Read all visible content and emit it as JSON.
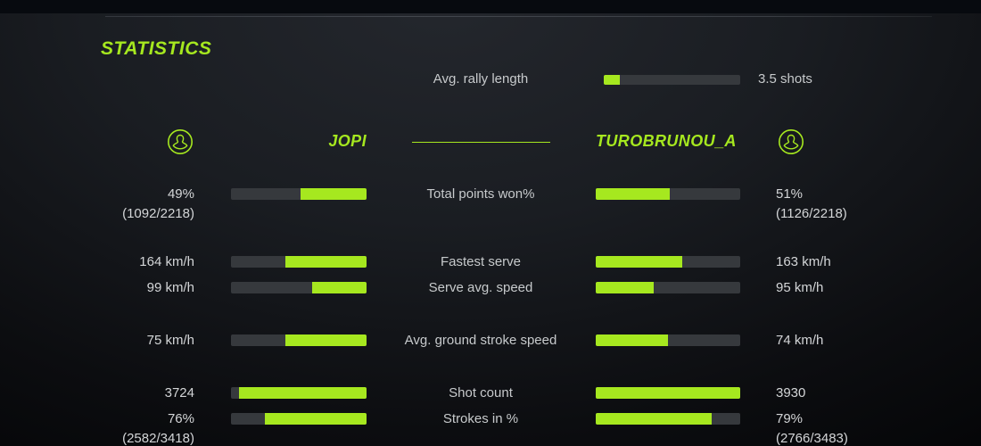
{
  "page": {
    "title": "STATISTICS"
  },
  "colors": {
    "accent": "#a6e81f",
    "track": "#36393d",
    "background_center": "#24272d",
    "background_edge": "#050608"
  },
  "rally": {
    "label": "Avg. rally length",
    "value": "3.5 shots",
    "fill_pct": 12
  },
  "players": {
    "left": {
      "name": "JOPI",
      "icon": "user-icon"
    },
    "right": {
      "name": "TUROBRUNOU_A",
      "icon": "user-icon"
    }
  },
  "stats": {
    "rows": [
      {
        "label": "Total points won%",
        "left": {
          "value": "49%",
          "sub": "(1092/2218)",
          "fill_pct": 49
        },
        "right": {
          "value": "51%",
          "sub": "(1126/2218)",
          "fill_pct": 51
        }
      },
      {
        "label": "Fastest serve",
        "left": {
          "value": "164 km/h",
          "fill_pct": 60
        },
        "right": {
          "value": "163 km/h",
          "fill_pct": 60
        }
      },
      {
        "label": "Serve avg. speed",
        "left": {
          "value": "99 km/h",
          "fill_pct": 40
        },
        "right": {
          "value": "95 km/h",
          "fill_pct": 40
        }
      },
      {
        "label": "Avg. ground stroke speed",
        "left": {
          "value": "75 km/h",
          "fill_pct": 60
        },
        "right": {
          "value": "74 km/h",
          "fill_pct": 50
        }
      },
      {
        "label": "Shot count",
        "left": {
          "value": "3724",
          "fill_pct": 94
        },
        "right": {
          "value": "3930",
          "fill_pct": 100
        }
      },
      {
        "label": "Strokes in %",
        "left": {
          "value": "76%",
          "sub": "(2582/3418)",
          "fill_pct": 75
        },
        "right": {
          "value": "79%",
          "sub": "(2766/3483)",
          "fill_pct": 80
        }
      }
    ]
  }
}
